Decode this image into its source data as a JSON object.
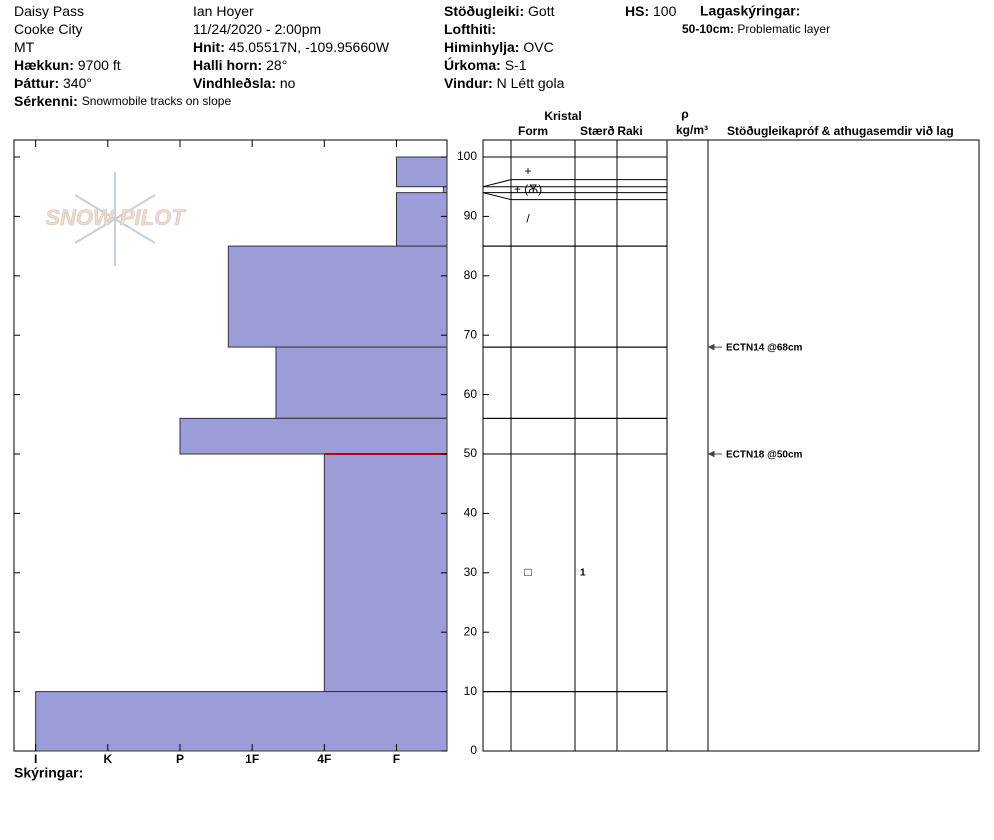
{
  "header": {
    "columns": [
      [
        {
          "value": "Daisy Pass"
        },
        {
          "value": "Cooke City"
        },
        {
          "value": "MT"
        },
        {
          "label": "Hækkun:",
          "value": "9700 ft"
        },
        {
          "label": "Þáttur:",
          "value": "340°"
        },
        {
          "label": "Sérkenni:",
          "value": "Snowmobile tracks on slope"
        }
      ],
      [
        {
          "value": "Ian Hoyer"
        },
        {
          "value": "11/24/2020 - 2:00pm"
        },
        {
          "label": "Hnit:",
          "value": "45.05517N, -109.95660W"
        },
        {
          "label": "Halli horn:",
          "value": "28°"
        },
        {
          "label": "Vindhleðsla:",
          "value": "no"
        }
      ],
      [
        {
          "label": "Stöðugleiki:",
          "value": "Gott"
        },
        {
          "label": "Lofthiti:"
        },
        {
          "label": "Himinhylja:",
          "value": "OVC"
        },
        {
          "label": "Úrkoma:",
          "value": "S-1"
        },
        {
          "label": "Vindur:",
          "value": "N Létt gola"
        }
      ],
      [
        {
          "label": "HS:",
          "value": "100"
        }
      ]
    ]
  },
  "legend": {
    "title": "Lagaskýringar:",
    "items": [
      {
        "label": "50-10cm:",
        "value": "Problematic layer"
      }
    ]
  },
  "notes_label": "Skýringar:",
  "logo": "SNOW PILOT",
  "chart_data": {
    "type": "hardness_profile",
    "color": "#9c9cd8",
    "flag_color": "#c00000",
    "ylim": [
      0,
      100
    ],
    "yticks": [
      0,
      10,
      20,
      30,
      40,
      50,
      60,
      70,
      80,
      90,
      100
    ],
    "xlim": [
      0.3,
      6.3
    ],
    "xticks": [
      {
        "value": 1,
        "label": "F"
      },
      {
        "value": 2,
        "label": "4F"
      },
      {
        "value": 3,
        "label": "1F"
      },
      {
        "value": 4,
        "label": "P"
      },
      {
        "value": 5,
        "label": "K"
      },
      {
        "value": 6,
        "label": "I"
      }
    ],
    "layers": [
      {
        "top": 100,
        "bottom": 95,
        "hardness": 1,
        "grain_form": "+"
      },
      {
        "top": 95,
        "bottom": 94,
        "hardness": 0.35,
        "grain_form": "+ (Ѫ)"
      },
      {
        "top": 94,
        "bottom": 85,
        "hardness": 1,
        "grain_form": "/"
      },
      {
        "top": 85,
        "bottom": 68,
        "hardness": 3.33
      },
      {
        "top": 68,
        "bottom": 56,
        "hardness": 2.67
      },
      {
        "top": 56,
        "bottom": 50,
        "hardness": 4
      },
      {
        "top": 50,
        "bottom": 10,
        "hardness": 2,
        "grain_form": "□",
        "grain_size": "1",
        "flagged": true
      },
      {
        "top": 10,
        "bottom": 0,
        "hardness": 6
      }
    ],
    "tests": [
      {
        "depth": 68,
        "label": "ECTN14 @68cm"
      },
      {
        "depth": 50,
        "label": "ECTN18 @50cm"
      }
    ],
    "column_headers": {
      "crystal": "Kristal",
      "form": "Form",
      "size": "Stærð",
      "moisture": "Raki",
      "density": "ρ",
      "density_unit": "kg/m³",
      "comments": "Stöðugleikapróf & athugasemdir við lag"
    }
  }
}
